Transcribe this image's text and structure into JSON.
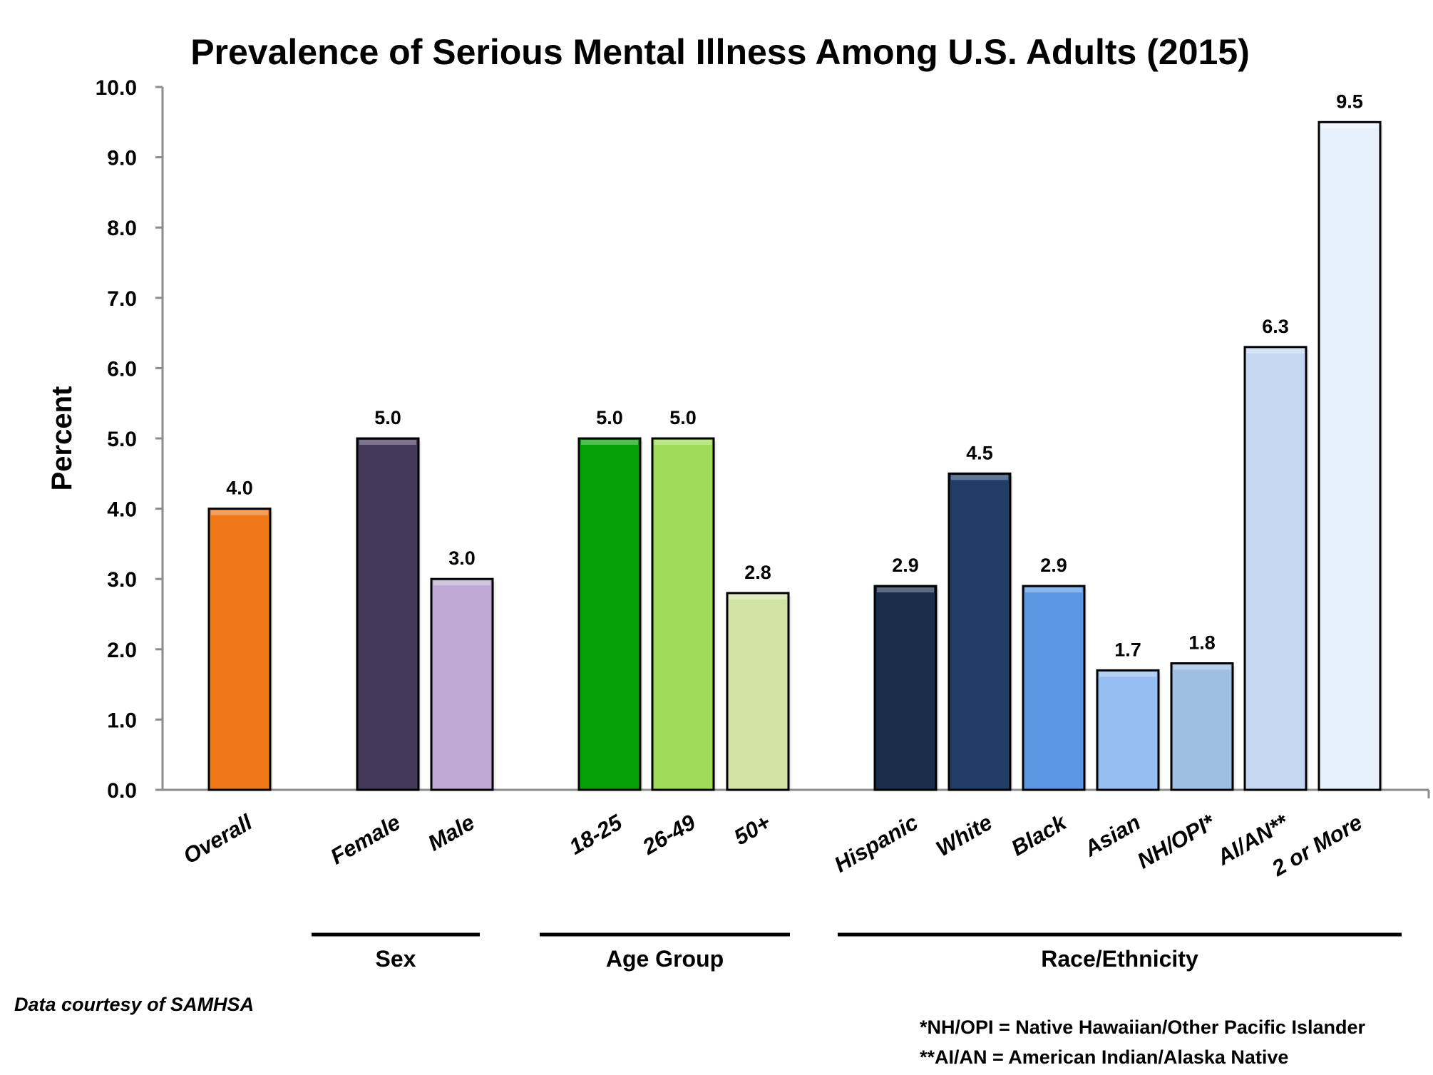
{
  "chart_data": {
    "type": "bar",
    "title": "Prevalence of Serious Mental Illness Among U.S. Adults (2015)",
    "xlabel": "",
    "ylabel": "Percent",
    "ylim": [
      0,
      10
    ],
    "yticks": [
      0,
      1,
      2,
      3,
      4,
      5,
      6,
      7,
      8,
      9,
      10
    ],
    "ytick_labels": [
      "0.0",
      "1.0",
      "2.0",
      "3.0",
      "4.0",
      "5.0",
      "6.0",
      "7.0",
      "8.0",
      "9.0",
      "10.0"
    ],
    "grid": false,
    "categories": [
      "Overall",
      "Female",
      "Male",
      "18-25",
      "26-49",
      "50+",
      "Hispanic",
      "White",
      "Black",
      "Asian",
      "NH/OPI*",
      "AI/AN**",
      "2 or More"
    ],
    "values": [
      4.0,
      5.0,
      3.0,
      5.0,
      5.0,
      2.8,
      2.9,
      4.5,
      2.9,
      1.7,
      1.8,
      6.3,
      9.5
    ],
    "value_labels": [
      "4.0",
      "5.0",
      "3.0",
      "5.0",
      "5.0",
      "2.8",
      "2.9",
      "4.5",
      "2.9",
      "1.7",
      "1.8",
      "6.3",
      "9.5"
    ],
    "colors": [
      "#f07818",
      "#463859",
      "#bfa9d3",
      "#05a006",
      "#9edb58",
      "#d2e3a6",
      "#182d4a",
      "#1f3d66",
      "#5b97e0",
      "#97bef0",
      "#9fbfe2",
      "#c4d9f1",
      "#e7f1fc"
    ],
    "groups": [
      {
        "name": "Sex",
        "categories": [
          "Female",
          "Male"
        ]
      },
      {
        "name": "Age Group",
        "categories": [
          "18-25",
          "26-49",
          "50+"
        ]
      },
      {
        "name": "Race/Ethnicity",
        "categories": [
          "Hispanic",
          "White",
          "Black",
          "Asian",
          "NH/OPI*",
          "AI/AN**",
          "2 or More"
        ]
      }
    ],
    "source": "Data courtesy of SAMHSA",
    "footnotes": [
      "*NH/OPI = Native Hawaiian/Other Pacific Islander",
      "**AI/AN = American Indian/Alaska Native"
    ]
  }
}
